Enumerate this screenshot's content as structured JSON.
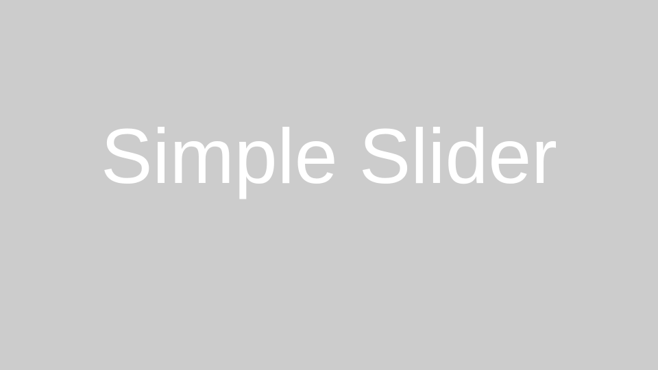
{
  "slide": {
    "title": "Simple Slider",
    "background_color": "#cccccc",
    "text_color": "#ffffff"
  }
}
